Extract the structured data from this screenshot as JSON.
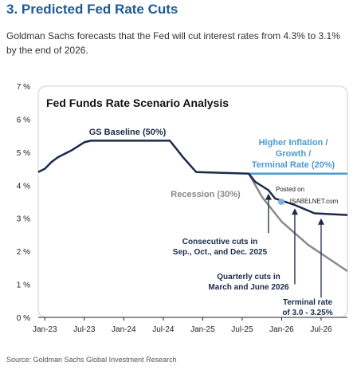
{
  "heading": "3. Predicted Fed Rate Cuts",
  "description": "Goldman Sachs forecasts that the Fed will cut interest rates from 4.3% to 3.1% by the end of 2026.",
  "source": "Source: Goldman Sachs Global Investment Research",
  "watermark": {
    "line1": "Posted on",
    "line2": "ISABELNET.com"
  },
  "colors": {
    "baseline": "#1a2b4a",
    "recession": "#8a8a8a",
    "higher_inflation": "#4a9bd1",
    "heading": "#1e5a96",
    "annotation": "#1a2b4a"
  },
  "chart_data": {
    "type": "line",
    "title": "Fed Funds Rate Scenario Analysis",
    "xlabel": "",
    "ylabel": "",
    "ylim": [
      0,
      7
    ],
    "xlim": [
      "2022-12",
      "2026-11"
    ],
    "y_ticks": [
      "0 %",
      "1 %",
      "2 %",
      "3 %",
      "4 %",
      "5 %",
      "6 %",
      "7 %"
    ],
    "x_ticks": [
      "Jan-23",
      "Jul-23",
      "Jan-24",
      "Jul-24",
      "Jan-25",
      "Jul-25",
      "Jan-26",
      "Jul-26"
    ],
    "grid": false,
    "series": [
      {
        "name": "GS Baseline (50%)",
        "color": "#1a2b4a",
        "points": [
          [
            "2022-12",
            4.4
          ],
          [
            "2023-01",
            4.5
          ],
          [
            "2023-02",
            4.7
          ],
          [
            "2023-03",
            4.85
          ],
          [
            "2023-05",
            5.05
          ],
          [
            "2023-07",
            5.3
          ],
          [
            "2023-08",
            5.35
          ],
          [
            "2024-08",
            5.35
          ],
          [
            "2024-09",
            5.1
          ],
          [
            "2024-10",
            4.85
          ],
          [
            "2024-12",
            4.4
          ],
          [
            "2025-08",
            4.35
          ],
          [
            "2025-09",
            4.1
          ],
          [
            "2025-11",
            3.85
          ],
          [
            "2025-12",
            3.6
          ],
          [
            "2026-03",
            3.4
          ],
          [
            "2026-06",
            3.15
          ],
          [
            "2026-11",
            3.1
          ]
        ]
      },
      {
        "name": "Recession (30%)",
        "color": "#8a8a8a",
        "points": [
          [
            "2025-08",
            4.35
          ],
          [
            "2025-10",
            3.65
          ],
          [
            "2026-01",
            2.9
          ],
          [
            "2026-05",
            2.2
          ],
          [
            "2026-11",
            1.4
          ]
        ]
      },
      {
        "name": "Higher Inflation / Growth / Terminal Rate (20%)",
        "color": "#4a9bd1",
        "points": [
          [
            "2025-08",
            4.35
          ],
          [
            "2026-11",
            4.35
          ]
        ]
      }
    ],
    "annotations": [
      {
        "text": [
          "Consecutive cuts in",
          "Sep., Oct., and Dec. 2025"
        ],
        "arrow_at": "2025-11",
        "arrow_from_y": 2.55,
        "arrow_to_y": 3.75
      },
      {
        "text": [
          "Quarterly cuts in",
          "March and June 2026"
        ],
        "arrow_at": "2026-03",
        "arrow_from_y": 1.0,
        "arrow_to_y": 3.3
      },
      {
        "text": [
          "Terminal rate",
          "of 3.0 - 3.25%"
        ],
        "arrow_at": "2026-07",
        "arrow_from_y": 0.6,
        "arrow_to_y": 3.0
      }
    ]
  }
}
